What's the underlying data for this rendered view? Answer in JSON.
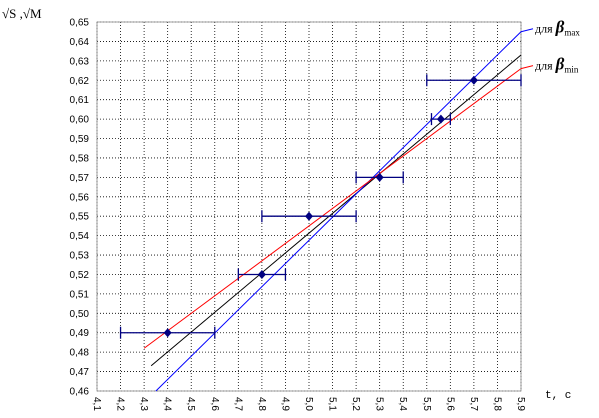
{
  "chart_data": {
    "type": "scatter",
    "ylabel": "√S ,√M",
    "xlabel": "t, c",
    "xlim": [
      4.1,
      5.9
    ],
    "ylim": [
      0.46,
      0.65
    ],
    "grid": true,
    "xticks": [
      {
        "value": 4.1,
        "label": "4,1"
      },
      {
        "value": 4.2,
        "label": "4,2"
      },
      {
        "value": 4.3,
        "label": "4,3"
      },
      {
        "value": 4.4,
        "label": "4,4"
      },
      {
        "value": 4.5,
        "label": "4,5"
      },
      {
        "value": 4.6,
        "label": "4,6"
      },
      {
        "value": 4.7,
        "label": "4,7"
      },
      {
        "value": 4.8,
        "label": "4,8"
      },
      {
        "value": 4.9,
        "label": "4,9"
      },
      {
        "value": 5.0,
        "label": "5,0"
      },
      {
        "value": 5.1,
        "label": "5,1"
      },
      {
        "value": 5.2,
        "label": "5,2"
      },
      {
        "value": 5.3,
        "label": "5,3"
      },
      {
        "value": 5.4,
        "label": "5,4"
      },
      {
        "value": 5.5,
        "label": "5,5"
      },
      {
        "value": 5.6,
        "label": "5,6"
      },
      {
        "value": 5.7,
        "label": "5,7"
      },
      {
        "value": 5.8,
        "label": "5,8"
      },
      {
        "value": 5.9,
        "label": "5,9"
      }
    ],
    "yticks": [
      {
        "value": 0.46,
        "label": "0,46"
      },
      {
        "value": 0.47,
        "label": "0,47"
      },
      {
        "value": 0.48,
        "label": "0,48"
      },
      {
        "value": 0.49,
        "label": "0,49"
      },
      {
        "value": 0.5,
        "label": "0,50"
      },
      {
        "value": 0.51,
        "label": "0,51"
      },
      {
        "value": 0.52,
        "label": "0,52"
      },
      {
        "value": 0.53,
        "label": "0,53"
      },
      {
        "value": 0.54,
        "label": "0,54"
      },
      {
        "value": 0.55,
        "label": "0,55"
      },
      {
        "value": 0.56,
        "label": "0,56"
      },
      {
        "value": 0.57,
        "label": "0,57"
      },
      {
        "value": 0.58,
        "label": "0,58"
      },
      {
        "value": 0.59,
        "label": "0,59"
      },
      {
        "value": 0.6,
        "label": "0,60"
      },
      {
        "value": 0.61,
        "label": "0,61"
      },
      {
        "value": 0.62,
        "label": "0,62"
      },
      {
        "value": 0.63,
        "label": "0,63"
      },
      {
        "value": 0.64,
        "label": "0,64"
      },
      {
        "value": 0.65,
        "label": "0,65"
      }
    ],
    "series": [
      {
        "color": "#000080",
        "errcolor": "#000080",
        "x": [
          4.4,
          4.8,
          5.0,
          5.3,
          5.56,
          5.7
        ],
        "values": [
          0.49,
          0.52,
          0.55,
          0.57,
          0.6,
          0.62
        ],
        "xerr": [
          0.2,
          0.1,
          0.2,
          0.1,
          0.04,
          0.2
        ]
      }
    ],
    "lines": [
      {
        "color": "#000000",
        "x": [
          4.33,
          5.9
        ],
        "values": [
          0.473,
          0.633
        ]
      },
      {
        "color": "#0000ff",
        "x": [
          4.35,
          5.9
        ],
        "values": [
          0.46,
          0.645
        ],
        "label": "для",
        "symbol": "β",
        "subscript": "max"
      },
      {
        "color": "#ff0000",
        "x": [
          4.3,
          5.9
        ],
        "values": [
          0.482,
          0.626
        ],
        "label": "для",
        "symbol": "β",
        "subscript": "min"
      }
    ]
  }
}
